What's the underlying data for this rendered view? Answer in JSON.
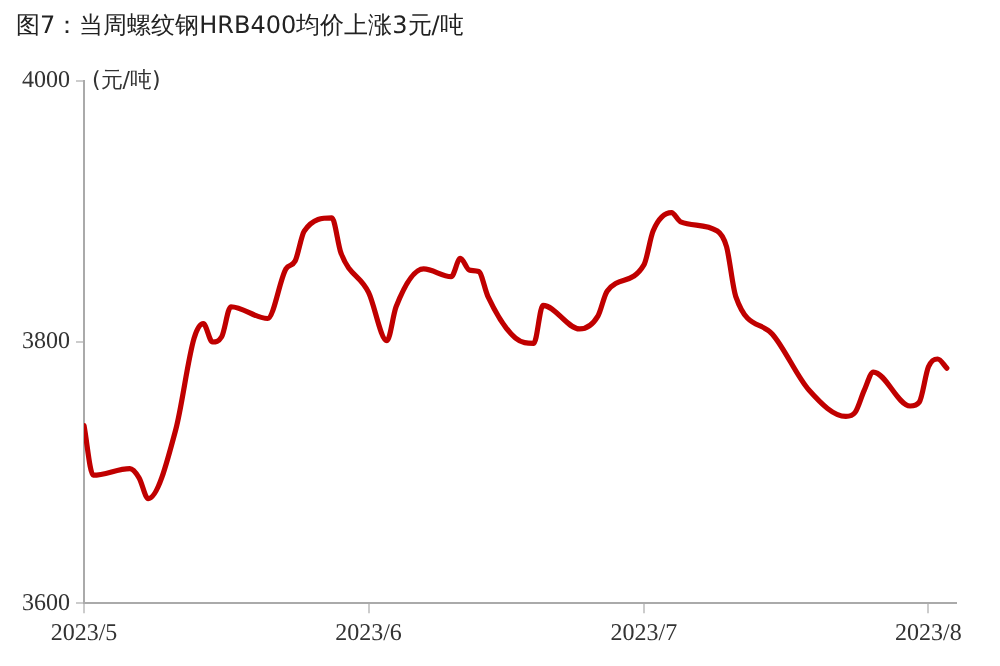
{
  "chart_data": {
    "type": "line",
    "title": "图7：当周螺纹钢HRB400均价上涨3元/吨",
    "ylabel": "(元/吨)",
    "x": [
      "2023-05-01",
      "2023-05-02",
      "2023-05-06",
      "2023-05-07",
      "2023-05-08",
      "2023-05-11",
      "2023-05-13",
      "2023-05-14",
      "2023-05-15",
      "2023-05-16",
      "2023-05-17",
      "2023-05-21",
      "2023-05-23",
      "2023-05-24",
      "2023-05-25",
      "2023-05-28",
      "2023-05-29",
      "2023-06-01",
      "2023-06-03",
      "2023-06-04",
      "2023-06-07",
      "2023-06-10",
      "2023-06-11",
      "2023-06-12",
      "2023-06-13",
      "2023-06-14",
      "2023-06-17",
      "2023-06-19",
      "2023-06-20",
      "2023-06-24",
      "2023-06-26",
      "2023-06-27",
      "2023-07-01",
      "2023-07-02",
      "2023-07-04",
      "2023-07-05",
      "2023-07-09",
      "2023-07-10",
      "2023-07-11",
      "2023-07-15",
      "2023-07-19",
      "2023-07-23",
      "2023-07-24",
      "2023-07-25",
      "2023-07-26",
      "2023-07-30",
      "2023-07-31",
      "2023-08-01",
      "2023-08-02",
      "2023-08-03"
    ],
    "series": [
      {
        "color": "#c00000",
        "values": [
          3736,
          3698,
          3703,
          3696,
          3680,
          3733,
          3803,
          3814,
          3800,
          3804,
          3827,
          3818,
          3856,
          3862,
          3885,
          3895,
          3868,
          3838,
          3801,
          3827,
          3856,
          3850,
          3864,
          3855,
          3854,
          3835,
          3803,
          3799,
          3828,
          3810,
          3820,
          3839,
          3859,
          3885,
          3899,
          3892,
          3885,
          3873,
          3835,
          3806,
          3763,
          3743,
          3746,
          3763,
          3777,
          3751,
          3754,
          3781,
          3787,
          3780
        ]
      }
    ],
    "xlim": [
      "2023-05-01",
      "2023-08-04"
    ],
    "xticks": [
      {
        "value": "2023-05-01",
        "label": "2023/5"
      },
      {
        "value": "2023-06-01",
        "label": "2023/6"
      },
      {
        "value": "2023-07-01",
        "label": "2023/7"
      },
      {
        "value": "2023-08-01",
        "label": "2023/8"
      }
    ],
    "ylim": [
      3600,
      4000
    ],
    "yticks": [
      3600,
      3800,
      4000
    ],
    "grid": false,
    "legend": false,
    "marker": "none",
    "line_style": "solid"
  }
}
